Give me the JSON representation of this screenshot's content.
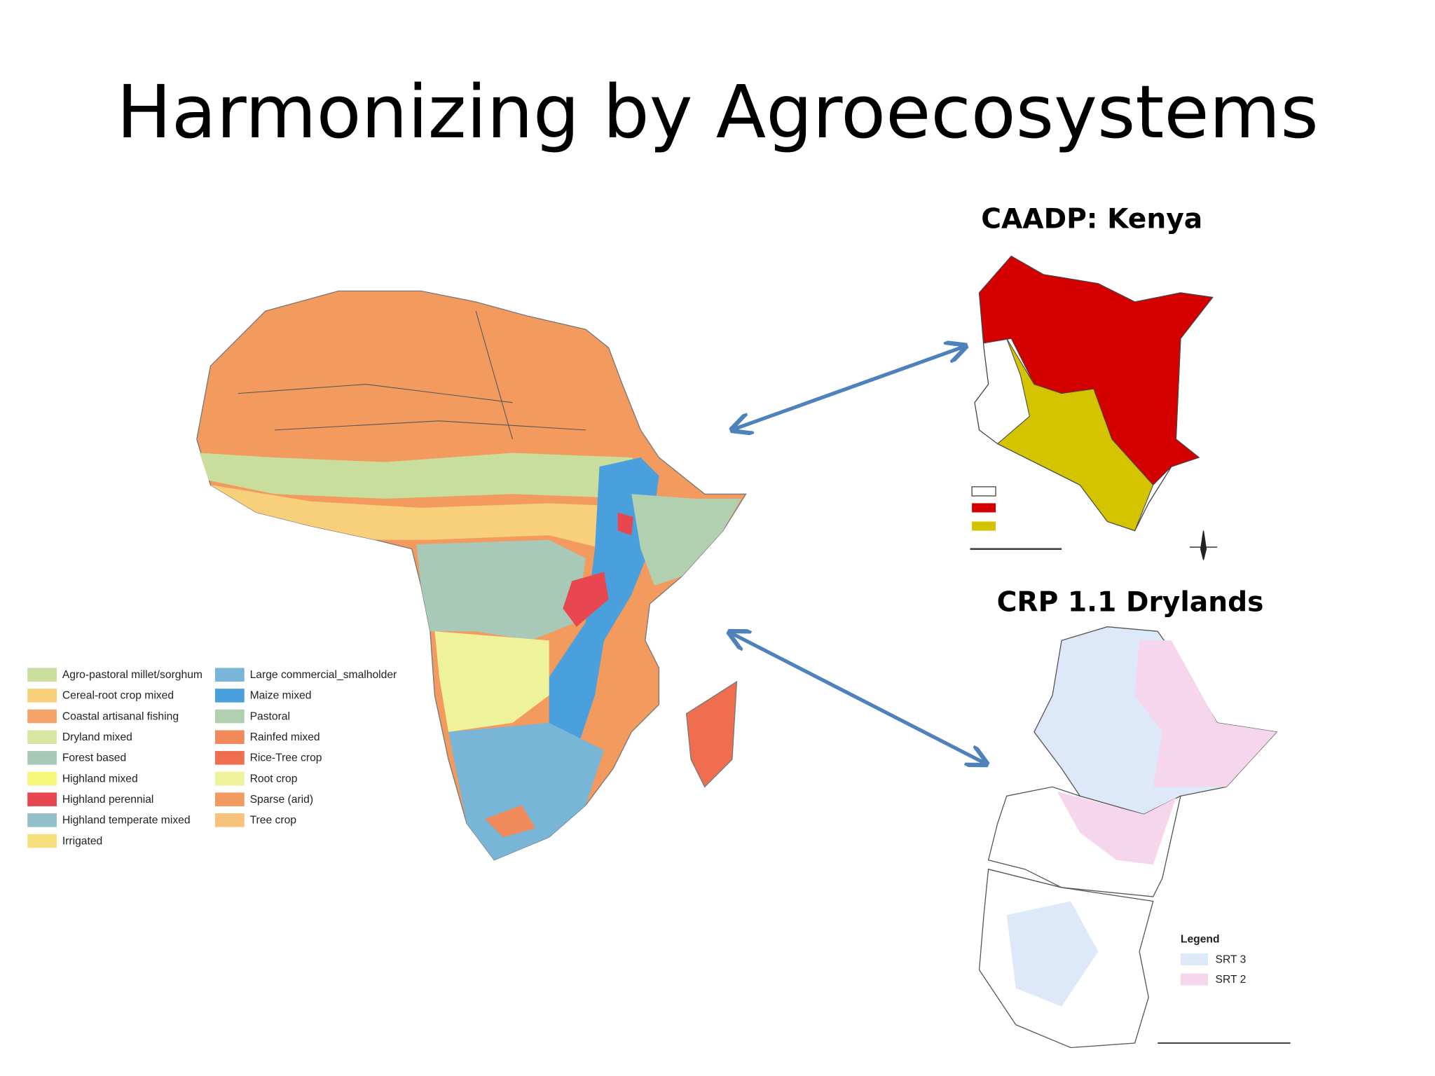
{
  "title": "Harmonizing by Agroecosystems",
  "africa_map": {
    "legend": [
      {
        "label": "Agro-pastoral millet/sorghum",
        "color": "#c9dd9d"
      },
      {
        "label": "Cereal-root crop mixed",
        "color": "#f8cf7a"
      },
      {
        "label": "Coastal artisanal fishing",
        "color": "#f4a46a"
      },
      {
        "label": "Dryland mixed",
        "color": "#d7e6a2"
      },
      {
        "label": "Forest based",
        "color": "#a9c9b8"
      },
      {
        "label": "Highland mixed",
        "color": "#f7f77c"
      },
      {
        "label": "Highland perennial",
        "color": "#e8474f"
      },
      {
        "label": "Highland temperate mixed",
        "color": "#93bfc8"
      },
      {
        "label": "Irrigated",
        "color": "#f6e07e"
      },
      {
        "label": "Large commercial_smalholder",
        "color": "#79b5d6"
      },
      {
        "label": "Maize mixed",
        "color": "#4aa0dc"
      },
      {
        "label": "Pastoral",
        "color": "#b0d0b0"
      },
      {
        "label": "Rainfed mixed",
        "color": "#f08a5a"
      },
      {
        "label": "Rice-Tree crop",
        "color": "#ee6e4e"
      },
      {
        "label": "Root crop",
        "color": "#eef29a"
      },
      {
        "label": "Sparse (arid)",
        "color": "#f39a5e"
      },
      {
        "label": "Tree crop",
        "color": "#f7c27a"
      }
    ]
  },
  "kenya_map": {
    "title": "CAADP: Kenya"
  },
  "drylands_map": {
    "title": "CRP 1.1 Drylands",
    "legend_title": "Legend",
    "legend": [
      {
        "label": "SRT 3",
        "color": "#dde8f8"
      },
      {
        "label": "SRT 2",
        "color": "#f6d6ec"
      }
    ]
  }
}
